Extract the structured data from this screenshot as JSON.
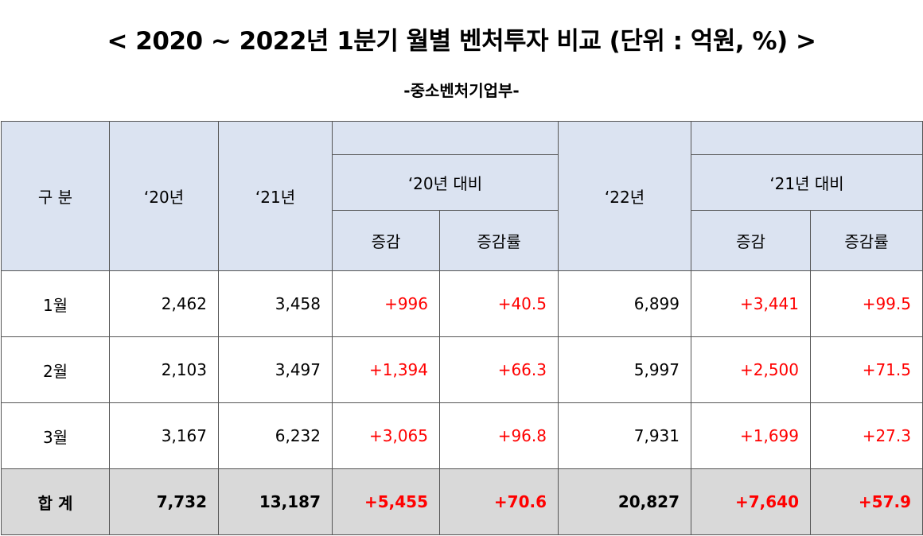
{
  "title": "< 2020 ~ 2022년 1분기 월별 벤처투자 비교 (단위 : 억원, %) >",
  "subtitle": "-중소벤처기업부-",
  "table": {
    "headers": {
      "category": "구 분",
      "y20": "‘20년",
      "y21": "‘21년",
      "vs20": "‘20년 대비",
      "y22": "‘22년",
      "vs21": "‘21년 대비",
      "change": "증감",
      "change_rate": "증감률"
    },
    "rows": [
      {
        "label": "1월",
        "y20": "2,462",
        "y21": "3,458",
        "chg21": "+996",
        "rate21": "+40.5",
        "y22": "6,899",
        "chg22": "+3,441",
        "rate22": "+99.5"
      },
      {
        "label": "2월",
        "y20": "2,103",
        "y21": "3,497",
        "chg21": "+1,394",
        "rate21": "+66.3",
        "y22": "5,997",
        "chg22": "+2,500",
        "rate22": "+71.5"
      },
      {
        "label": "3월",
        "y20": "3,167",
        "y21": "6,232",
        "chg21": "+3,065",
        "rate21": "+96.8",
        "y22": "7,931",
        "chg22": "+1,699",
        "rate22": "+27.3"
      }
    ],
    "total": {
      "label": "합 계",
      "y20": "7,732",
      "y21": "13,187",
      "chg21": "+5,455",
      "rate21": "+70.6",
      "y22": "20,827",
      "chg22": "+7,640",
      "rate22": "+57.9"
    }
  },
  "colors": {
    "header_bg": "#dbe3f1",
    "total_bg": "#d9d9d9",
    "increase_text": "#ff0000"
  }
}
